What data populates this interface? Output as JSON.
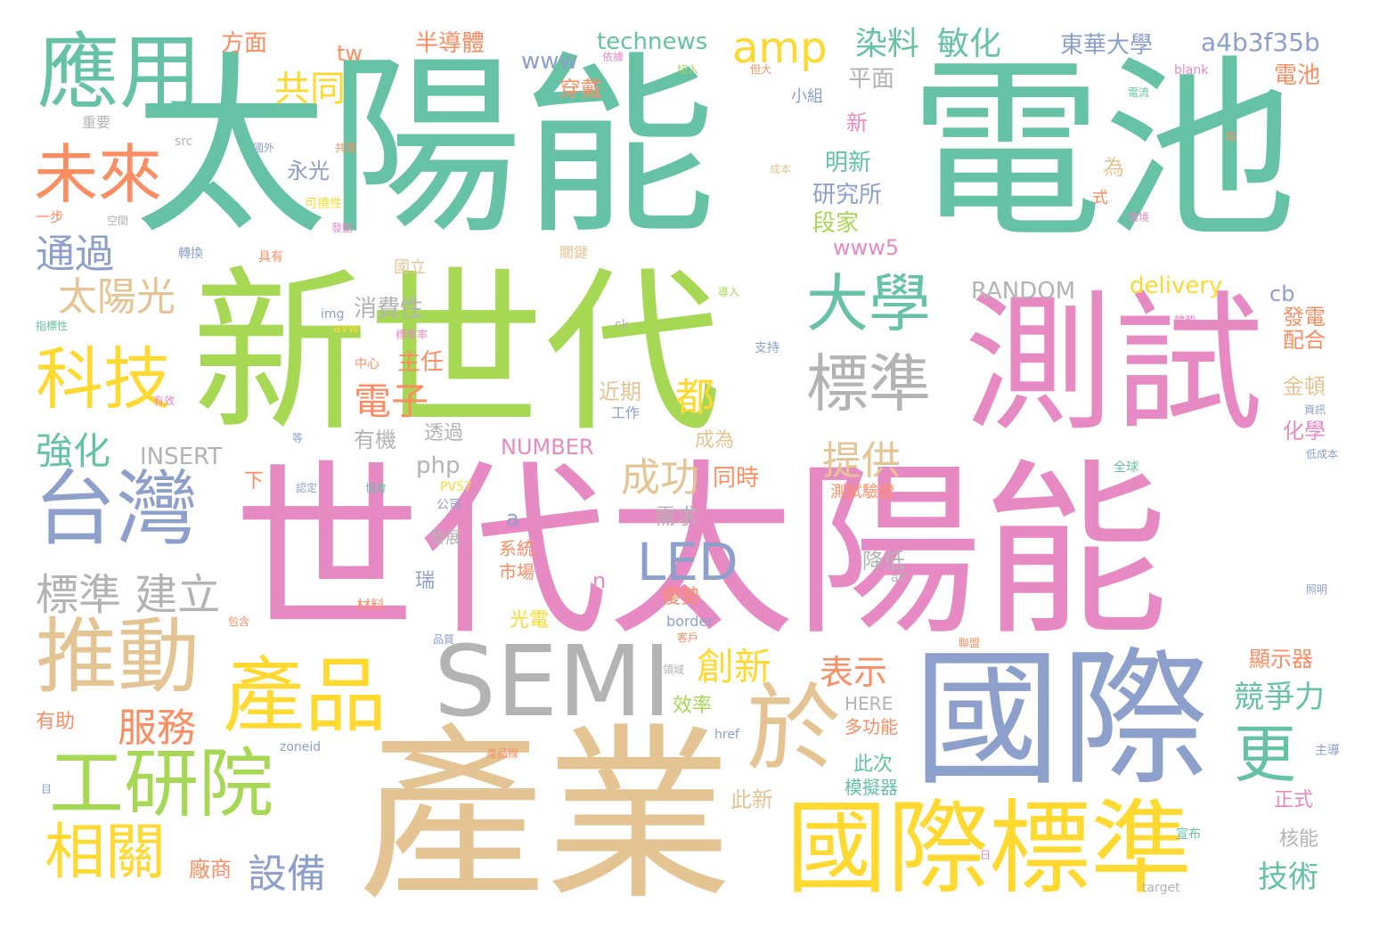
{
  "palette": {
    "green": "#66c2a5",
    "lime": "#a6d854",
    "pink": "#e78ac3",
    "blue": "#8da0cb",
    "tan": "#e5c494",
    "yellow": "#ffd92f",
    "orange": "#fc8d62",
    "gray": "#b3b3b3"
  },
  "words": [
    {
      "text": "太陽能",
      "color": "green"
    },
    {
      "text": "電池",
      "color": "green"
    },
    {
      "text": "新世代",
      "color": "lime"
    },
    {
      "text": "世代太陽能",
      "color": "pink"
    },
    {
      "text": "測試",
      "color": "pink"
    },
    {
      "text": "產業",
      "color": "tan"
    },
    {
      "text": "國際",
      "color": "blue"
    },
    {
      "text": "應用",
      "color": "green"
    },
    {
      "text": "台灣",
      "color": "blue"
    },
    {
      "text": "國際標準",
      "color": "yellow"
    },
    {
      "text": "工研院",
      "color": "lime"
    },
    {
      "text": "推動",
      "color": "tan"
    },
    {
      "text": "產品",
      "color": "yellow"
    },
    {
      "text": "SEMI",
      "color": "gray"
    },
    {
      "text": "於",
      "color": "tan"
    },
    {
      "text": "科技",
      "color": "yellow"
    },
    {
      "text": "未來",
      "color": "orange"
    },
    {
      "text": "標準",
      "color": "gray"
    },
    {
      "text": "大學",
      "color": "green"
    },
    {
      "text": "相關",
      "color": "yellow"
    },
    {
      "text": "更",
      "color": "green"
    },
    {
      "text": "LED",
      "color": "blue"
    },
    {
      "text": "amp",
      "color": "yellow"
    },
    {
      "text": "標準 建立",
      "color": "gray"
    },
    {
      "text": "太陽光",
      "color": "tan"
    },
    {
      "text": "通過",
      "color": "blue"
    },
    {
      "text": "共同",
      "color": "yellow"
    },
    {
      "text": "強化",
      "color": "green"
    },
    {
      "text": "服務",
      "color": "orange"
    },
    {
      "text": "設備",
      "color": "blue"
    },
    {
      "text": "創新",
      "color": "yellow"
    },
    {
      "text": "表示",
      "color": "orange"
    },
    {
      "text": "提供",
      "color": "tan"
    },
    {
      "text": "成功",
      "color": "tan"
    },
    {
      "text": "電子",
      "color": "orange"
    },
    {
      "text": "都",
      "color": "yellow"
    },
    {
      "text": "競爭力",
      "color": "green"
    },
    {
      "text": "技術",
      "color": "green"
    },
    {
      "text": "染料",
      "color": "green"
    },
    {
      "text": "敏化",
      "color": "green"
    },
    {
      "text": "東華大學",
      "color": "blue"
    },
    {
      "text": "a4b3f35b",
      "color": "blue"
    },
    {
      "text": "technews",
      "color": "green"
    },
    {
      "text": "半導體",
      "color": "orange"
    },
    {
      "text": "方面",
      "color": "orange"
    },
    {
      "text": "www",
      "color": "blue"
    },
    {
      "text": "tw",
      "color": "orange"
    },
    {
      "text": "平面",
      "color": "gray"
    },
    {
      "text": "電池",
      "color": "orange"
    },
    {
      "text": "RANDOM",
      "color": "gray"
    },
    {
      "text": "delivery",
      "color": "yellow"
    },
    {
      "text": "消費性",
      "color": "gray"
    },
    {
      "text": "INSERT",
      "color": "gray"
    },
    {
      "text": "NUMBER",
      "color": "pink"
    },
    {
      "text": "php",
      "color": "gray"
    },
    {
      "text": "同時",
      "color": "orange"
    },
    {
      "text": "需求",
      "color": "gray"
    },
    {
      "text": "研究所",
      "color": "blue"
    },
    {
      "text": "明新",
      "color": "green"
    },
    {
      "text": "段家",
      "color": "lime"
    },
    {
      "text": "www5",
      "color": "pink"
    },
    {
      "text": "永光",
      "color": "blue"
    },
    {
      "text": "穿戴",
      "color": "orange"
    },
    {
      "text": "顯示器",
      "color": "orange"
    },
    {
      "text": "化學",
      "color": "pink"
    },
    {
      "text": "金頓",
      "color": "tan"
    },
    {
      "text": "發電",
      "color": "orange"
    },
    {
      "text": "配合",
      "color": "orange"
    },
    {
      "text": "新",
      "color": "pink"
    },
    {
      "text": "有機",
      "color": "gray"
    },
    {
      "text": "透過",
      "color": "gray"
    },
    {
      "text": "主任",
      "color": "orange"
    },
    {
      "text": "近期",
      "color": "tan"
    },
    {
      "text": "成為",
      "color": "tan"
    },
    {
      "text": "降低",
      "color": "gray"
    },
    {
      "text": "測試驗證",
      "color": "orange"
    },
    {
      "text": "系統",
      "color": "orange"
    },
    {
      "text": "市場",
      "color": "orange"
    },
    {
      "text": "優勢",
      "color": "orange"
    },
    {
      "text": "光電",
      "color": "yellow"
    },
    {
      "text": "效率",
      "color": "lime"
    },
    {
      "text": "HERE",
      "color": "gray"
    },
    {
      "text": "多功能",
      "color": "orange"
    },
    {
      "text": "此次",
      "color": "green"
    },
    {
      "text": "模擬器",
      "color": "green"
    },
    {
      "text": "此新",
      "color": "tan"
    },
    {
      "text": "廠商",
      "color": "orange"
    },
    {
      "text": "有助",
      "color": "orange"
    },
    {
      "text": "正式",
      "color": "pink"
    },
    {
      "text": "核能",
      "color": "gray"
    },
    {
      "text": "cb",
      "color": "blue"
    },
    {
      "text": "瑞",
      "color": "blue"
    },
    {
      "text": "n",
      "color": "pink"
    },
    {
      "text": "a",
      "color": "blue"
    },
    {
      "text": "下",
      "color": "orange"
    },
    {
      "text": "為",
      "color": "tan"
    },
    {
      "text": "式",
      "color": "orange"
    },
    {
      "text": "工作",
      "color": "blue"
    },
    {
      "text": "小組",
      "color": "blue"
    },
    {
      "text": "重要",
      "color": "gray"
    },
    {
      "text": "一步",
      "color": "orange"
    },
    {
      "text": "國立",
      "color": "tan"
    },
    {
      "text": "關鍵",
      "color": "tan"
    },
    {
      "text": "發展",
      "color": "gray"
    },
    {
      "text": "公司",
      "color": "blue"
    },
    {
      "text": "材料",
      "color": "orange"
    },
    {
      "text": "border",
      "color": "blue"
    },
    {
      "text": "img",
      "color": "blue"
    },
    {
      "text": "src",
      "color": "gray"
    },
    {
      "text": "alt",
      "color": "gray"
    },
    {
      "text": "href",
      "color": "blue"
    },
    {
      "text": "zoneid",
      "color": "blue"
    },
    {
      "text": "target",
      "color": "gray"
    },
    {
      "text": "blank",
      "color": "pink"
    },
    {
      "text": "avw",
      "color": "yellow"
    },
    {
      "text": "ck",
      "color": "gray"
    },
    {
      "text": "PV57",
      "color": "yellow"
    },
    {
      "text": "支持",
      "color": "blue"
    },
    {
      "text": "中心",
      "color": "orange"
    },
    {
      "text": "全球",
      "color": "green"
    },
    {
      "text": "宣布",
      "color": "green"
    },
    {
      "text": "主導",
      "color": "blue"
    },
    {
      "text": "照明",
      "color": "blue"
    },
    {
      "text": "資訊",
      "color": "blue"
    },
    {
      "text": "低成本",
      "color": "blue"
    },
    {
      "text": "轉換",
      "color": "blue"
    },
    {
      "text": "具有",
      "color": "orange"
    },
    {
      "text": "可撓性",
      "color": "yellow"
    },
    {
      "text": "指標性",
      "color": "green"
    },
    {
      "text": "有效",
      "color": "pink"
    },
    {
      "text": "認定",
      "color": "blue"
    },
    {
      "text": "協會",
      "color": "green"
    },
    {
      "text": "包含",
      "color": "orange"
    },
    {
      "text": "品質",
      "color": "blue"
    },
    {
      "text": "客戶",
      "color": "orange"
    },
    {
      "text": "產品線",
      "color": "orange"
    },
    {
      "text": "領域",
      "color": "gray"
    },
    {
      "text": "依據",
      "color": "pink"
    },
    {
      "text": "切入",
      "color": "lime"
    },
    {
      "text": "但大",
      "color": "orange"
    },
    {
      "text": "電流",
      "color": "green"
    },
    {
      "text": "成本",
      "color": "tan"
    },
    {
      "text": "環境",
      "color": "pink"
    },
    {
      "text": "共面",
      "color": "orange"
    },
    {
      "text": "國外",
      "color": "blue"
    },
    {
      "text": "空間",
      "color": "gray"
    },
    {
      "text": "發動",
      "color": "pink"
    },
    {
      "text": "導入",
      "color": "lime"
    },
    {
      "text": "時",
      "color": "orange"
    },
    {
      "text": "標準率",
      "color": "pink"
    },
    {
      "text": "等",
      "color": "blue"
    },
    {
      "text": "目",
      "color": "blue"
    },
    {
      "text": "轉載",
      "color": "pink"
    },
    {
      "text": "聯盟",
      "color": "orange"
    },
    {
      "text": "日",
      "color": "pink"
    }
  ]
}
